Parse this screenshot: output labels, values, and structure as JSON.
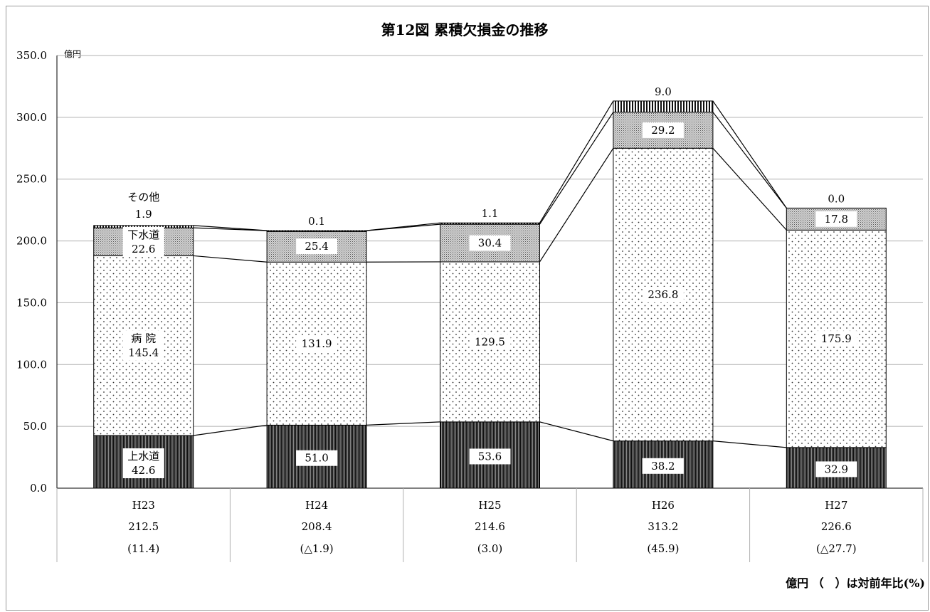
{
  "chart_data": {
    "type": "bar",
    "stacked": true,
    "title": "第12図 累積欠損金の推移",
    "yunit": "億円",
    "ylim": [
      0,
      350
    ],
    "yticks": [
      "0.0",
      "50.0",
      "100.0",
      "150.0",
      "200.0",
      "250.0",
      "300.0",
      "350.0"
    ],
    "grid": true,
    "categories": [
      "H23",
      "H24",
      "H25",
      "H26",
      "H27"
    ],
    "series": [
      {
        "name": "上水道",
        "values": [
          42.6,
          51.0,
          53.6,
          38.2,
          32.9
        ],
        "labels": [
          "42.6",
          "51.0",
          "53.6",
          "38.2",
          "32.9"
        ]
      },
      {
        "name": "病院",
        "values": [
          145.4,
          131.9,
          129.5,
          236.8,
          175.9
        ],
        "labels": [
          "145.4",
          "131.9",
          "129.5",
          "236.8",
          "175.9"
        ]
      },
      {
        "name": "下水道",
        "values": [
          22.6,
          25.4,
          30.4,
          29.2,
          17.8
        ],
        "labels": [
          "22.6",
          "25.4",
          "30.4",
          "29.2",
          "17.8"
        ]
      },
      {
        "name": "その他",
        "values": [
          1.9,
          0.1,
          1.1,
          9.0,
          0.0
        ],
        "labels": [
          "1.9",
          "0.1",
          "1.1",
          "9.0",
          "0.0"
        ]
      }
    ],
    "series_display_names": [
      "上水道",
      "病 院",
      "下水道",
      "その他"
    ],
    "totals": [
      "212.5",
      "208.4",
      "214.6",
      "313.2",
      "226.6"
    ],
    "yoy_change": [
      "(11.4)",
      "(△1.9)",
      "(3.0)",
      "(45.9)",
      "(△27.7)"
    ],
    "footnote": "億円 （　）は対前年比(%)"
  },
  "colors": {
    "water": "#1a1a1a",
    "hospital": "#ffffff",
    "sewer": "#bdbdbd",
    "other": "#555555",
    "grid": "#b0b0b0",
    "frame": "#9a9a9a"
  }
}
